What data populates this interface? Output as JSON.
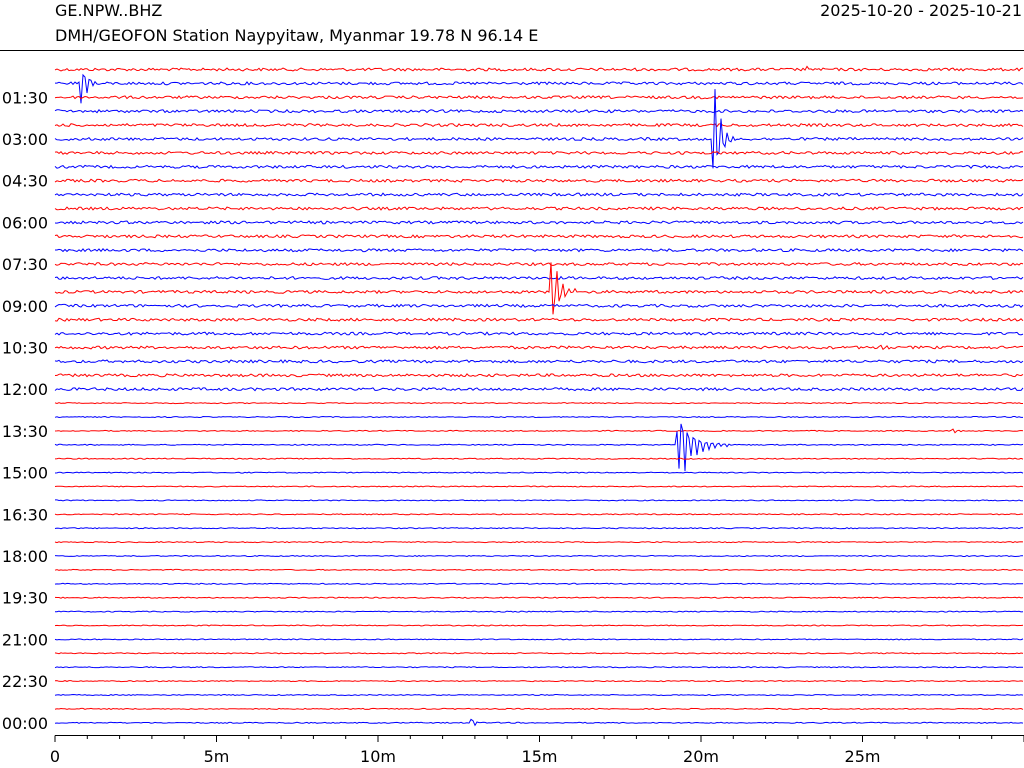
{
  "header": {
    "station_code": "GE.NPW..BHZ",
    "date_range": "2025-10-20 - 2025-10-21",
    "subtitle": "DMH/GEOFON Station Naypyitaw, Myanmar  19.78 N 96.14 E"
  },
  "chart_data": {
    "type": "line",
    "description_kind": "helicorder",
    "trace_colors": [
      "#ff0000",
      "#0000ff"
    ],
    "trace_count": 48,
    "minutes_per_line": 30,
    "xlabel": "",
    "xlim": [
      0,
      30
    ],
    "x_ticks": [
      {
        "value": 0,
        "label": "0"
      },
      {
        "value": 5,
        "label": "5m"
      },
      {
        "value": 10,
        "label": "10m"
      },
      {
        "value": 15,
        "label": "15m"
      },
      {
        "value": 20,
        "label": "20m"
      },
      {
        "value": 25,
        "label": "25m"
      }
    ],
    "y_tick_labels": [
      {
        "line": 2,
        "label": "01:30"
      },
      {
        "line": 5,
        "label": "03:00"
      },
      {
        "line": 8,
        "label": "04:30"
      },
      {
        "line": 11,
        "label": "06:00"
      },
      {
        "line": 14,
        "label": "07:30"
      },
      {
        "line": 17,
        "label": "09:00"
      },
      {
        "line": 20,
        "label": "10:30"
      },
      {
        "line": 23,
        "label": "12:00"
      },
      {
        "line": 26,
        "label": "13:30"
      },
      {
        "line": 29,
        "label": "15:00"
      },
      {
        "line": 32,
        "label": "16:30"
      },
      {
        "line": 35,
        "label": "18:00"
      },
      {
        "line": 38,
        "label": "19:30"
      },
      {
        "line": 41,
        "label": "21:00"
      },
      {
        "line": 44,
        "label": "22:30"
      },
      {
        "line": 47,
        "label": "00:00"
      }
    ],
    "events": [
      {
        "line": 1,
        "minute": 0.8,
        "amp": 30,
        "dur": 0.6
      },
      {
        "line": 5,
        "minute": 20.4,
        "amp": 70,
        "dur": 0.7
      },
      {
        "line": 16,
        "minute": 15.4,
        "amp": 40,
        "dur": 0.8
      },
      {
        "line": 27,
        "minute": 19.3,
        "amp": 45,
        "dur": 1.6
      },
      {
        "line": 20,
        "minute": 25.5,
        "amp": 6,
        "dur": 0.8
      },
      {
        "line": 47,
        "minute": 12.9,
        "amp": 6,
        "dur": 0.4
      },
      {
        "line": 0,
        "minute": 23.3,
        "amp": 5,
        "dur": 0.2
      },
      {
        "line": 26,
        "minute": 27.8,
        "amp": 3,
        "dur": 0.6
      }
    ]
  }
}
